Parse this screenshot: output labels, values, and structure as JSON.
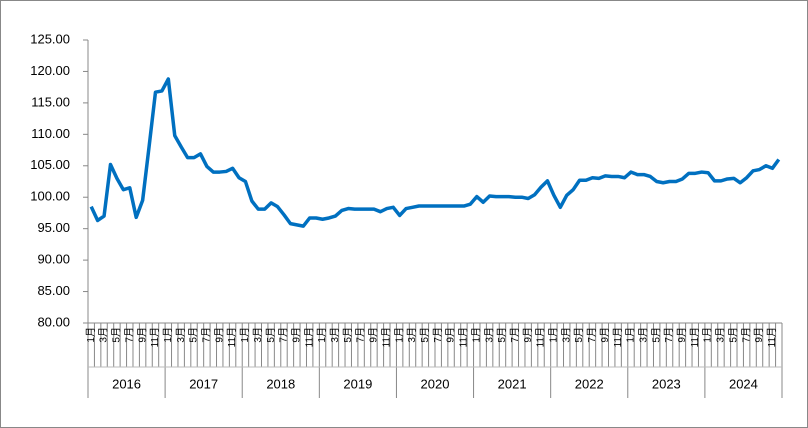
{
  "chart_data": {
    "type": "line",
    "color": "#0070c0",
    "grid": false,
    "ylim": [
      80,
      125
    ],
    "yticks": [
      {
        "value": 80,
        "label": "80.00"
      },
      {
        "value": 85,
        "label": "85.00"
      },
      {
        "value": 90,
        "label": "90.00"
      },
      {
        "value": 95,
        "label": "95.00"
      },
      {
        "value": 100,
        "label": "100.00"
      },
      {
        "value": 105,
        "label": "105.00"
      },
      {
        "value": 110,
        "label": "110.00"
      },
      {
        "value": 115,
        "label": "115.00"
      },
      {
        "value": 120,
        "label": "120.00"
      },
      {
        "value": 125,
        "label": "125.00"
      }
    ],
    "years": [
      "2016",
      "2017",
      "2018",
      "2019",
      "2020",
      "2021",
      "2022",
      "2023",
      "2024"
    ],
    "categories": [
      "1月",
      null,
      "3月",
      null,
      "5月",
      null,
      "7月",
      null,
      "9月",
      null,
      "11月",
      null,
      "1月",
      null,
      "3月",
      null,
      "5月",
      null,
      "7月",
      null,
      "9月",
      null,
      "11月",
      null,
      "1月",
      null,
      "3月",
      null,
      "5月",
      null,
      "7月",
      null,
      "9月",
      null,
      "11月",
      null,
      "1月",
      null,
      "3月",
      null,
      "5月",
      null,
      "7月",
      null,
      "9月",
      null,
      "11月",
      null,
      "1月",
      null,
      "3月",
      null,
      "5月",
      null,
      "7月",
      null,
      "9月",
      null,
      "11月",
      null,
      "1月",
      null,
      "3月",
      null,
      "5月",
      null,
      "7月",
      null,
      "9月",
      null,
      "11月",
      null,
      "1月",
      null,
      "3月",
      null,
      "5月",
      null,
      "7月",
      null,
      "9月",
      null,
      "11月",
      null,
      "1月",
      null,
      "3月",
      null,
      "5月",
      null,
      "7月",
      null,
      "9月",
      null,
      "11月",
      null,
      "1月",
      null,
      "3月",
      null,
      "5月",
      null,
      "7月",
      null,
      "9月",
      null,
      "11月",
      null
    ],
    "values": [
      98.5,
      96.3,
      97,
      105.2,
      103,
      101.2,
      101.5,
      96.8,
      99.5,
      108,
      116.7,
      116.9,
      118.8,
      109.8,
      108,
      106.3,
      106.3,
      106.9,
      104.9,
      104,
      104,
      104.1,
      104.6,
      103.1,
      102.5,
      99.4,
      98.1,
      98.1,
      99.1,
      98.5,
      97.2,
      95.8,
      95.6,
      95.4,
      96.7,
      96.7,
      96.5,
      96.7,
      97,
      97.9,
      98.2,
      98.1,
      98.1,
      98.1,
      98.1,
      97.7,
      98.2,
      98.4,
      97.1,
      98.2,
      98.4,
      98.6,
      98.6,
      98.6,
      98.6,
      98.6,
      98.6,
      98.6,
      98.6,
      98.9,
      100.1,
      99.2,
      100.2,
      100.1,
      100.1,
      100.1,
      100,
      100,
      99.8,
      100.4,
      101.6,
      102.6,
      100.3,
      98.4,
      100.3,
      101.2,
      102.7,
      102.7,
      103.1,
      103,
      103.4,
      103.3,
      103.3,
      103.1,
      104,
      103.6,
      103.6,
      103.3,
      102.5,
      102.3,
      102.5,
      102.5,
      102.9,
      103.8,
      103.8,
      104,
      103.9,
      102.6,
      102.6,
      102.9,
      103,
      102.3,
      103.1,
      104.2,
      104.4,
      105,
      104.6,
      106
    ]
  }
}
